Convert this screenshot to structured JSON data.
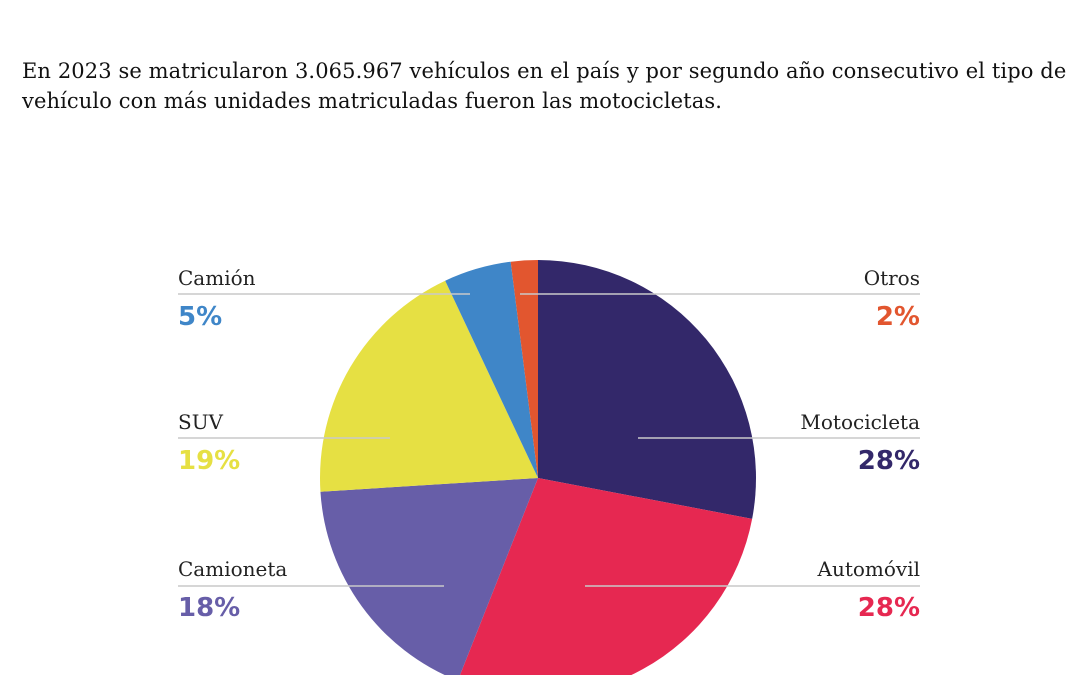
{
  "intro_text": "En 2023 se matricularon 3.065.967 vehículos en el país y por segundo año consecutivo el tipo de vehículo con más unidades matriculadas fueron las motocicletas.",
  "chart_data": {
    "type": "pie",
    "categories": [
      "Motocicleta",
      "Automóvil",
      "Camioneta",
      "SUV",
      "Camión",
      "Otros"
    ],
    "values": [
      28,
      28,
      18,
      19,
      5,
      2
    ],
    "value_labels": [
      "28%",
      "28%",
      "18%",
      "19%",
      "5%",
      "2%"
    ],
    "colors": [
      "#33286a",
      "#e62851",
      "#675ea8",
      "#e6e043",
      "#3f86c8",
      "#e2562f"
    ],
    "label_color": "#222222"
  }
}
